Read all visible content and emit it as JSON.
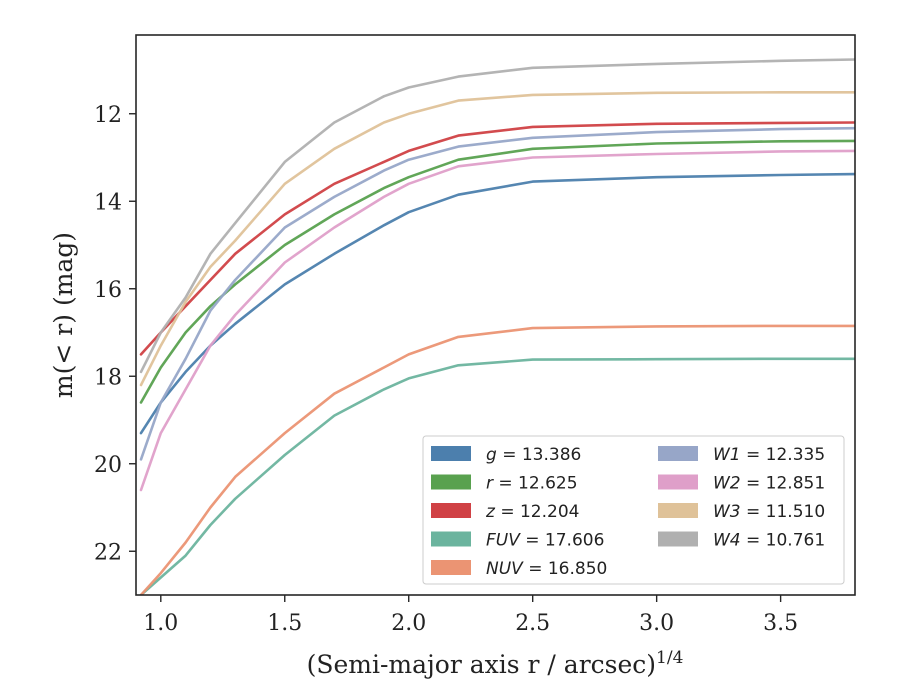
{
  "chart_data": {
    "type": "line",
    "xlabel": "(Semi-major axis r / arcsec)",
    "xlabel_superscript": "1/4",
    "ylabel": "m(< r) (mag)",
    "xlim": [
      0.9,
      3.8
    ],
    "ylim": [
      23.0,
      10.2
    ],
    "y_inverted": true,
    "grid": false,
    "legend_position": "lower-right",
    "legend_columns": 2,
    "xticks": [
      1.0,
      1.5,
      2.0,
      2.5,
      3.0,
      3.5
    ],
    "xtick_labels": [
      "1.0",
      "1.5",
      "2.0",
      "2.5",
      "3.0",
      "3.5"
    ],
    "yticks": [
      12,
      14,
      16,
      18,
      20,
      22
    ],
    "ytick_labels": [
      "12",
      "14",
      "16",
      "18",
      "20",
      "22"
    ],
    "series": [
      {
        "name": "g",
        "label": "g = 13.386",
        "color": "#4c7fad",
        "x": [
          0.92,
          1.0,
          1.1,
          1.2,
          1.3,
          1.5,
          1.7,
          1.9,
          2.0,
          2.2,
          2.5,
          3.0,
          3.5,
          3.8
        ],
        "y": [
          19.3,
          18.6,
          17.9,
          17.3,
          16.8,
          15.9,
          15.2,
          14.55,
          14.25,
          13.85,
          13.55,
          13.45,
          13.4,
          13.38
        ]
      },
      {
        "name": "r",
        "label": "r = 12.625",
        "color": "#59a14f",
        "x": [
          0.92,
          1.0,
          1.1,
          1.2,
          1.3,
          1.5,
          1.7,
          1.9,
          2.0,
          2.2,
          2.5,
          3.0,
          3.5,
          3.8
        ],
        "y": [
          18.6,
          17.8,
          17.0,
          16.4,
          15.9,
          15.0,
          14.3,
          13.7,
          13.45,
          13.05,
          12.8,
          12.68,
          12.63,
          12.62
        ]
      },
      {
        "name": "z",
        "label": "z = 12.204",
        "color": "#d04145",
        "x": [
          0.92,
          1.0,
          1.1,
          1.2,
          1.3,
          1.5,
          1.7,
          1.9,
          2.0,
          2.2,
          2.5,
          3.0,
          3.5,
          3.8
        ],
        "y": [
          17.5,
          17.0,
          16.4,
          15.8,
          15.2,
          14.3,
          13.6,
          13.1,
          12.85,
          12.5,
          12.3,
          12.23,
          12.21,
          12.2
        ]
      },
      {
        "name": "FUV",
        "label": "FUV = 17.606",
        "color": "#6bb49e",
        "x": [
          0.92,
          1.0,
          1.1,
          1.2,
          1.3,
          1.5,
          1.7,
          1.9,
          2.0,
          2.2,
          2.5,
          3.0,
          3.5,
          3.8
        ],
        "y": [
          23.0,
          22.6,
          22.1,
          21.4,
          20.8,
          19.8,
          18.9,
          18.3,
          18.05,
          17.75,
          17.62,
          17.61,
          17.6,
          17.6
        ]
      },
      {
        "name": "NUV",
        "label": "NUV = 16.850",
        "color": "#eb9473",
        "x": [
          0.92,
          1.0,
          1.1,
          1.2,
          1.3,
          1.5,
          1.7,
          1.9,
          2.0,
          2.2,
          2.5,
          3.0,
          3.5,
          3.8
        ],
        "y": [
          23.0,
          22.5,
          21.8,
          21.0,
          20.3,
          19.3,
          18.4,
          17.8,
          17.5,
          17.1,
          16.9,
          16.86,
          16.85,
          16.85
        ]
      },
      {
        "name": "W1",
        "label": "W1 = 12.335",
        "color": "#97a6c8",
        "x": [
          0.92,
          1.0,
          1.1,
          1.2,
          1.3,
          1.5,
          1.7,
          1.9,
          2.0,
          2.2,
          2.5,
          3.0,
          3.5,
          3.8
        ],
        "y": [
          19.9,
          18.6,
          17.6,
          16.5,
          15.8,
          14.6,
          13.9,
          13.3,
          13.05,
          12.75,
          12.55,
          12.42,
          12.35,
          12.33
        ]
      },
      {
        "name": "W2",
        "label": "W2 = 12.851",
        "color": "#df9fc9",
        "x": [
          0.92,
          1.0,
          1.1,
          1.2,
          1.3,
          1.5,
          1.7,
          1.9,
          2.0,
          2.2,
          2.5,
          3.0,
          3.5,
          3.8
        ],
        "y": [
          20.6,
          19.3,
          18.3,
          17.3,
          16.6,
          15.4,
          14.6,
          13.9,
          13.6,
          13.2,
          13.0,
          12.92,
          12.86,
          12.85
        ]
      },
      {
        "name": "W3",
        "label": "W3 = 11.510",
        "color": "#dfc299",
        "x": [
          0.92,
          1.0,
          1.1,
          1.2,
          1.3,
          1.5,
          1.7,
          1.9,
          2.0,
          2.2,
          2.5,
          3.0,
          3.5,
          3.8
        ],
        "y": [
          18.2,
          17.3,
          16.3,
          15.5,
          14.9,
          13.6,
          12.8,
          12.2,
          12.0,
          11.7,
          11.57,
          11.52,
          11.51,
          11.51
        ]
      },
      {
        "name": "W4",
        "label": "W4 = 10.761",
        "color": "#b0b0b0",
        "x": [
          0.92,
          1.0,
          1.1,
          1.2,
          1.3,
          1.5,
          1.7,
          1.9,
          2.0,
          2.2,
          2.5,
          3.0,
          3.5,
          3.8
        ],
        "y": [
          17.9,
          17.0,
          16.2,
          15.2,
          14.5,
          13.1,
          12.2,
          11.6,
          11.4,
          11.15,
          10.95,
          10.86,
          10.79,
          10.76
        ]
      }
    ],
    "legend_order": [
      "g",
      "r",
      "z",
      "FUV",
      "NUV",
      "W1",
      "W2",
      "W3",
      "W4"
    ]
  }
}
